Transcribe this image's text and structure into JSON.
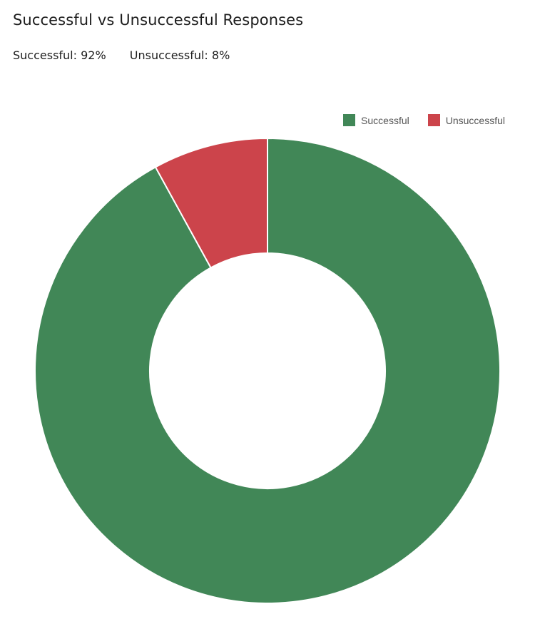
{
  "header": {
    "title": "Successful vs Unsuccessful Responses"
  },
  "summary": {
    "successful": "Successful: 92%",
    "unsuccessful": "Unsuccessful: 8%"
  },
  "legend": {
    "placement": "top-right",
    "items": [
      {
        "label": "Successful",
        "color": "#418757"
      },
      {
        "label": "Unsuccessful",
        "color": "#cc444b"
      }
    ]
  },
  "chart_data": {
    "type": "pie",
    "variant": "donut",
    "title": "Successful vs Unsuccessful Responses",
    "categories": [
      "Successful",
      "Unsuccessful"
    ],
    "values": [
      92,
      8
    ],
    "unit": "%",
    "colors": [
      "#418757",
      "#cc444b"
    ],
    "start_angle_deg": 0,
    "direction": "clockwise",
    "order": [
      "Unsuccessful",
      "Successful"
    ]
  }
}
